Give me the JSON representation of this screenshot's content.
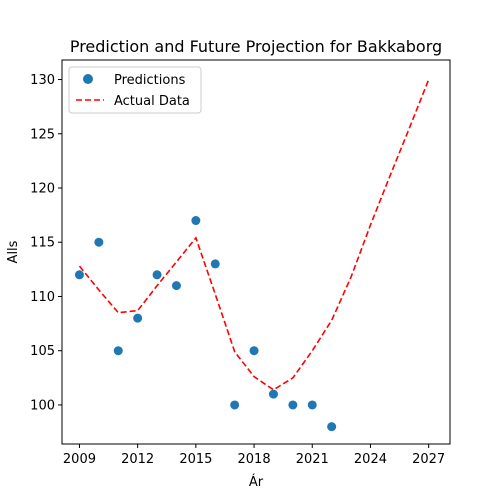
{
  "chart_data": {
    "type": "scatter",
    "title": "Prediction and Future Projection for Bakkaborg",
    "xlabel": "Ár",
    "ylabel": "Alls",
    "xlim": [
      2008.1,
      2028.1
    ],
    "ylim": [
      96.4,
      131.8
    ],
    "xticks": [
      2009,
      2012,
      2015,
      2018,
      2021,
      2024,
      2027
    ],
    "yticks": [
      100,
      105,
      110,
      115,
      120,
      125,
      130
    ],
    "grid": false,
    "legend_position": "top-left",
    "series": [
      {
        "name": "Predictions",
        "kind": "scatter",
        "color": "#1f77b4",
        "x": [
          2009,
          2010,
          2011,
          2012,
          2013,
          2014,
          2015,
          2016,
          2017,
          2018,
          2019,
          2020,
          2021,
          2022
        ],
        "y": [
          112,
          115,
          105,
          108,
          112,
          111,
          117,
          113,
          100,
          105,
          101,
          100,
          100,
          98
        ]
      },
      {
        "name": "Actual Data",
        "kind": "line",
        "style": "dashed",
        "color": "#ff0000",
        "x": [
          2009,
          2010,
          2011,
          2012,
          2013,
          2014,
          2015,
          2016,
          2017,
          2018,
          2019,
          2020,
          2021,
          2022,
          2023,
          2024,
          2025,
          2026,
          2027
        ],
        "y": [
          112.8,
          110.6,
          108.5,
          108.7,
          111.0,
          113.2,
          115.4,
          110.2,
          104.9,
          102.6,
          101.4,
          102.5,
          105.0,
          107.8,
          111.8,
          116.6,
          121.1,
          125.5,
          130.0
        ]
      }
    ]
  }
}
